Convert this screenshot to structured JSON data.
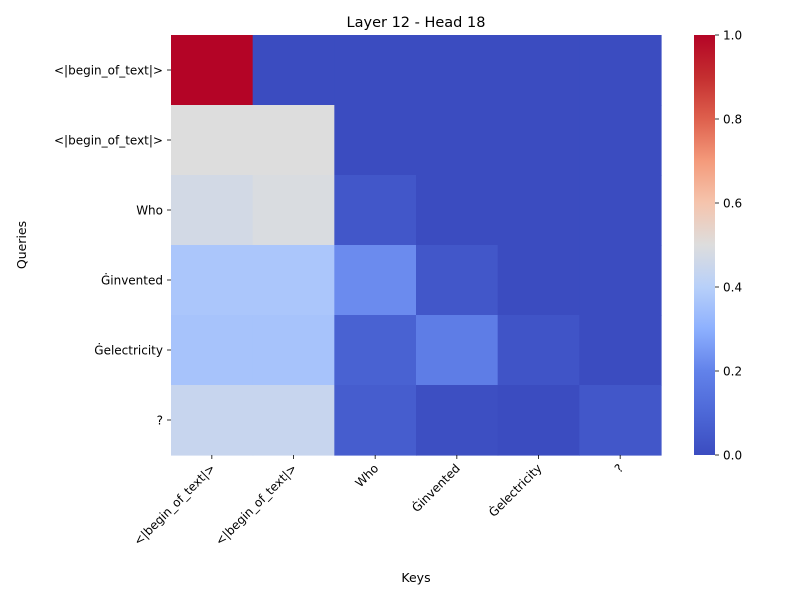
{
  "chart_data": {
    "type": "heatmap",
    "title": "Layer 12 - Head 18",
    "xlabel": "Keys",
    "ylabel": "Queries",
    "x_tick_labels": [
      "<|begin_of_text|>",
      "<|begin_of_text|>",
      "Who",
      "Ġinvented",
      "Ġelectricity",
      "?"
    ],
    "y_tick_labels": [
      "<|begin_of_text|>",
      "<|begin_of_text|>",
      "Who",
      "Ġinvented",
      "Ġelectricity",
      "?"
    ],
    "values": [
      [
        1.0,
        0.0,
        0.0,
        0.0,
        0.0,
        0.0
      ],
      [
        0.5,
        0.5,
        0.0,
        0.0,
        0.0,
        0.0
      ],
      [
        0.47,
        0.49,
        0.04,
        0.0,
        0.0,
        0.0
      ],
      [
        0.37,
        0.37,
        0.22,
        0.04,
        0.0,
        0.0
      ],
      [
        0.36,
        0.36,
        0.08,
        0.18,
        0.03,
        0.0
      ],
      [
        0.44,
        0.44,
        0.06,
        0.01,
        0.0,
        0.04
      ]
    ],
    "colormap": "coolwarm",
    "colorbar": {
      "range": [
        0.0,
        1.0
      ],
      "ticks": [
        0.0,
        0.2,
        0.4,
        0.6,
        0.8,
        1.0
      ],
      "tick_labels": [
        "0.0",
        "0.2",
        "0.4",
        "0.6",
        "0.8",
        "1.0"
      ]
    },
    "grid": false,
    "legend": "none"
  }
}
